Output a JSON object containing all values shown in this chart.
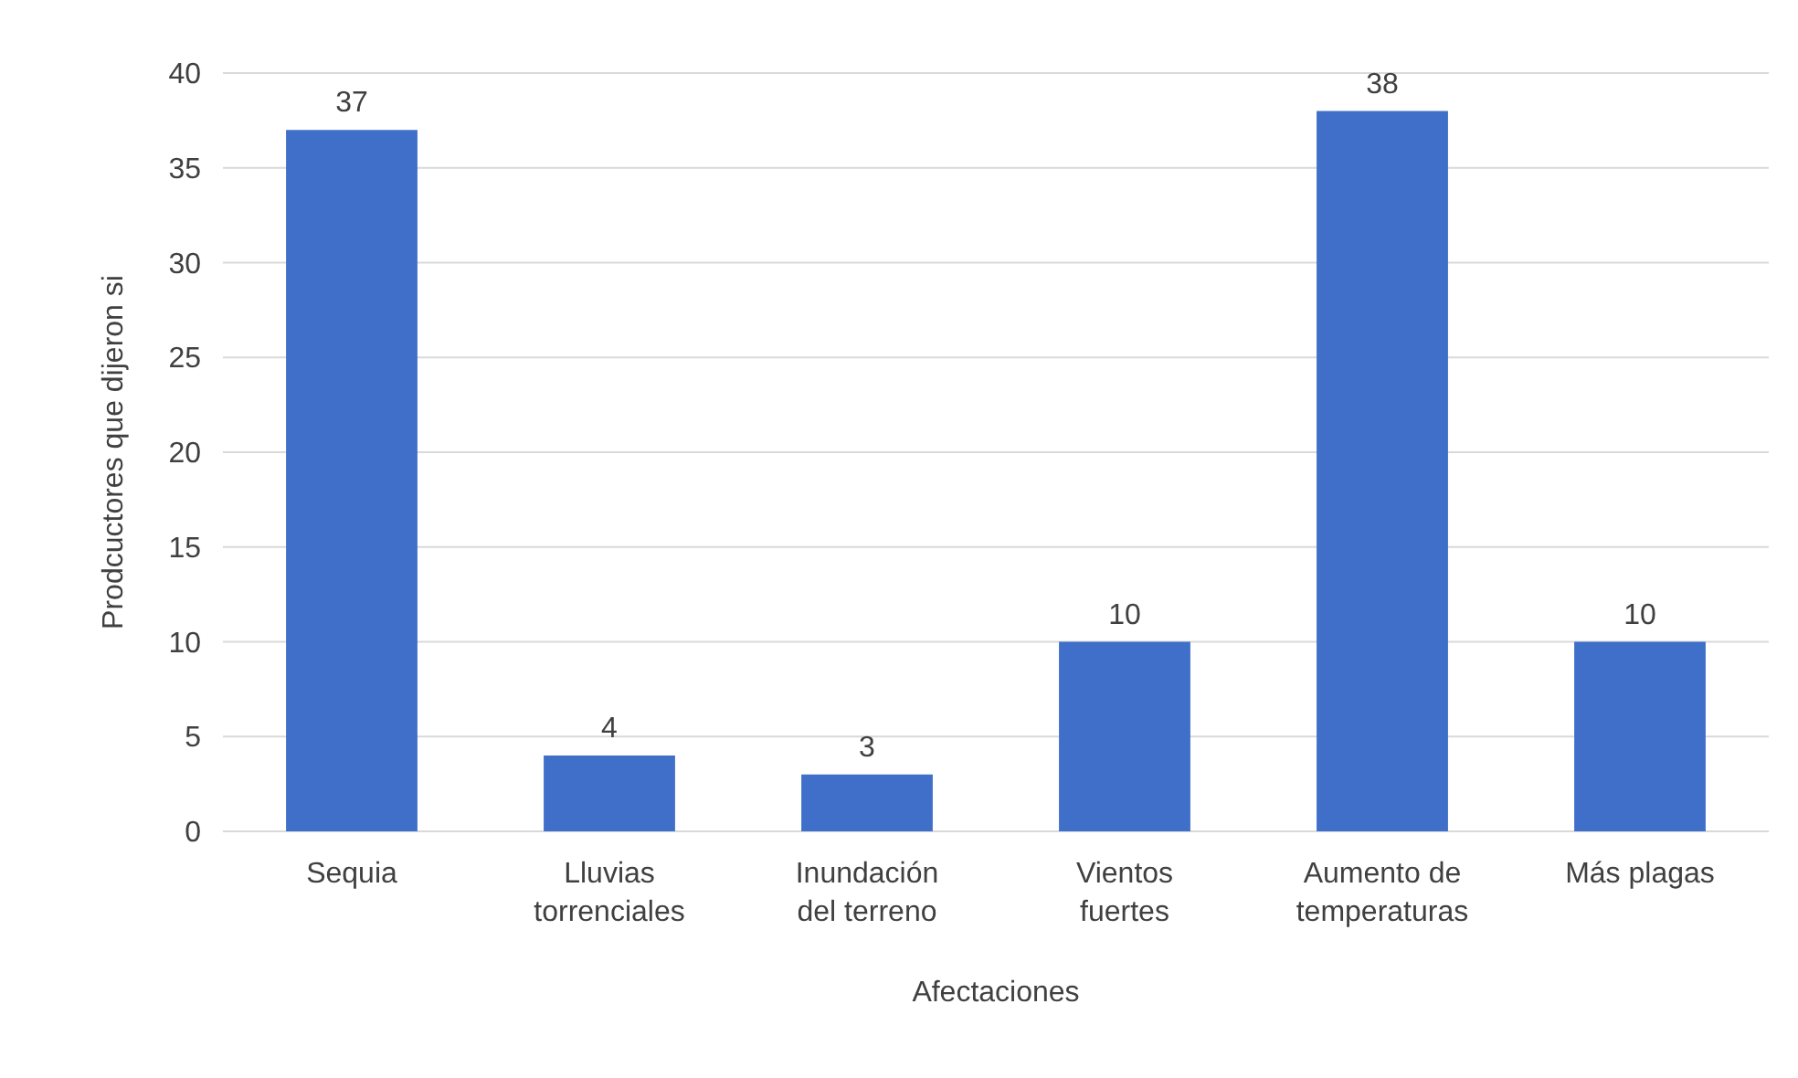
{
  "chart_data": {
    "type": "bar",
    "xlabel": "Afectaciones",
    "ylabel": "Prodcuctores que dijeron si",
    "categories": [
      "Sequia",
      "Lluvias torrenciales",
      "Inundación del terreno",
      "Vientos fuertes",
      "Aumento de temperaturas",
      "Más plagas"
    ],
    "values": [
      37,
      4,
      3,
      10,
      38,
      10
    ],
    "color": "#3f6fc9",
    "ylim": [
      0,
      40
    ],
    "yticks": [
      0,
      5,
      10,
      15,
      20,
      25,
      30,
      35,
      40
    ],
    "grid": "y",
    "data_labels": true
  }
}
